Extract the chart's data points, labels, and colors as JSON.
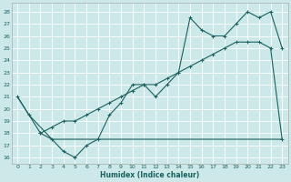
{
  "xlabel": "Humidex (Indice chaleur)",
  "bg_color": "#cce8e8",
  "grid_color": "#ffffff",
  "line_color": "#1a6060",
  "xlim": [
    -0.5,
    23.5
  ],
  "ylim": [
    15.5,
    28.7
  ],
  "xticks": [
    0,
    1,
    2,
    3,
    4,
    5,
    6,
    7,
    8,
    9,
    10,
    11,
    12,
    13,
    14,
    15,
    16,
    17,
    18,
    19,
    20,
    21,
    22,
    23
  ],
  "yticks": [
    16,
    17,
    18,
    19,
    20,
    21,
    22,
    23,
    24,
    25,
    26,
    27,
    28
  ],
  "curve1_x": [
    0,
    1,
    2,
    3,
    4,
    5,
    6,
    7,
    8,
    9,
    10,
    11,
    12,
    13,
    14,
    15,
    16,
    17,
    18,
    19,
    20,
    21,
    22,
    23
  ],
  "curve1_y": [
    21,
    19.5,
    18,
    17.5,
    16.5,
    16,
    17,
    17.5,
    19.5,
    20.5,
    22,
    22,
    21,
    22,
    23,
    27.5,
    26.5,
    26,
    26,
    27,
    28,
    27.5,
    28,
    25
  ],
  "curve2_x": [
    2,
    3,
    4,
    5,
    6,
    7,
    8,
    9,
    10,
    11,
    12,
    13,
    14,
    15,
    16,
    17,
    18,
    19,
    20,
    21,
    22,
    23
  ],
  "curve2_y": [
    18,
    18.5,
    19,
    19,
    19.5,
    20,
    20.5,
    21,
    21.5,
    22,
    22,
    22.5,
    23,
    23.5,
    24,
    24.5,
    25,
    25.5,
    25.5,
    25.5,
    25,
    17.5
  ],
  "curve3_x": [
    0,
    1,
    2,
    3,
    4,
    5,
    6,
    7,
    8,
    9,
    10,
    11,
    12,
    13,
    14,
    15,
    16,
    17,
    18,
    19,
    20,
    21,
    22,
    23
  ],
  "curve3_y": [
    21,
    19.5,
    18.5,
    17.5,
    17.5,
    17.5,
    17.5,
    17.5,
    17.5,
    17.5,
    17.5,
    17.5,
    17.5,
    17.5,
    17.5,
    17.5,
    17.5,
    17.5,
    17.5,
    17.5,
    17.5,
    17.5,
    17.5,
    17.5
  ]
}
